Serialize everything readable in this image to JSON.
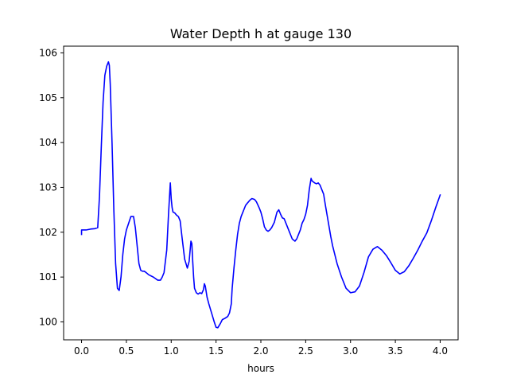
{
  "chart_data": {
    "type": "line",
    "title": "Water Depth h at gauge 130",
    "xlabel": "hours",
    "ylabel": "",
    "xlim": [
      -0.2,
      4.2
    ],
    "ylim": [
      99.6,
      106.15
    ],
    "xticks": [
      0.0,
      0.5,
      1.0,
      1.5,
      2.0,
      2.5,
      3.0,
      3.5,
      4.0
    ],
    "xtick_labels": [
      "0.0",
      "0.5",
      "1.0",
      "1.5",
      "2.0",
      "2.5",
      "3.0",
      "3.5",
      "4.0"
    ],
    "yticks": [
      100,
      101,
      102,
      103,
      104,
      105,
      106
    ],
    "ytick_labels": [
      "100",
      "101",
      "102",
      "103",
      "104",
      "105",
      "106"
    ],
    "grid": false,
    "series": [
      {
        "color": "#0000ff",
        "x": [
          0.0,
          0.0,
          0.05,
          0.1,
          0.15,
          0.18,
          0.2,
          0.22,
          0.24,
          0.26,
          0.28,
          0.3,
          0.31,
          0.32,
          0.34,
          0.36,
          0.38,
          0.4,
          0.42,
          0.44,
          0.46,
          0.48,
          0.5,
          0.55,
          0.58,
          0.6,
          0.62,
          0.64,
          0.66,
          0.68,
          0.7,
          0.72,
          0.75,
          0.8,
          0.85,
          0.88,
          0.9,
          0.92,
          0.95,
          0.97,
          0.99,
          1.0,
          1.01,
          1.02,
          1.04,
          1.06,
          1.08,
          1.1,
          1.12,
          1.15,
          1.18,
          1.2,
          1.22,
          1.23,
          1.24,
          1.25,
          1.26,
          1.28,
          1.3,
          1.32,
          1.34,
          1.36,
          1.37,
          1.38,
          1.4,
          1.42,
          1.45,
          1.48,
          1.5,
          1.52,
          1.55,
          1.57,
          1.6,
          1.63,
          1.65,
          1.67,
          1.68,
          1.7,
          1.72,
          1.74,
          1.76,
          1.78,
          1.8,
          1.83,
          1.85,
          1.88,
          1.9,
          1.93,
          1.95,
          1.98,
          2.0,
          2.02,
          2.04,
          2.06,
          2.08,
          2.1,
          2.12,
          2.15,
          2.18,
          2.2,
          2.22,
          2.24,
          2.26,
          2.28,
          2.3,
          2.32,
          2.35,
          2.38,
          2.4,
          2.42,
          2.44,
          2.46,
          2.48,
          2.5,
          2.52,
          2.54,
          2.56,
          2.57,
          2.58,
          2.6,
          2.62,
          2.64,
          2.66,
          2.68,
          2.7,
          2.72,
          2.75,
          2.78,
          2.8,
          2.85,
          2.9,
          2.95,
          3.0,
          3.05,
          3.1,
          3.15,
          3.2,
          3.25,
          3.3,
          3.35,
          3.4,
          3.45,
          3.5,
          3.55,
          3.6,
          3.65,
          3.7,
          3.75,
          3.8,
          3.85,
          3.9,
          3.95,
          4.0
        ],
        "y": [
          101.95,
          102.05,
          102.05,
          102.07,
          102.08,
          102.1,
          102.8,
          103.9,
          104.9,
          105.5,
          105.7,
          105.8,
          105.72,
          105.3,
          104.0,
          102.5,
          101.3,
          100.75,
          100.7,
          101.0,
          101.5,
          101.85,
          102.05,
          102.35,
          102.35,
          102.1,
          101.7,
          101.3,
          101.15,
          101.13,
          101.13,
          101.1,
          101.05,
          101.0,
          100.93,
          100.93,
          101.0,
          101.1,
          101.6,
          102.4,
          103.1,
          102.75,
          102.55,
          102.45,
          102.43,
          102.38,
          102.35,
          102.25,
          101.9,
          101.4,
          101.2,
          101.35,
          101.8,
          101.75,
          101.35,
          101.0,
          100.75,
          100.65,
          100.62,
          100.65,
          100.63,
          100.72,
          100.85,
          100.8,
          100.55,
          100.4,
          100.2,
          100.0,
          99.88,
          99.87,
          99.97,
          100.05,
          100.08,
          100.12,
          100.2,
          100.4,
          100.75,
          101.2,
          101.6,
          101.95,
          102.2,
          102.35,
          102.45,
          102.6,
          102.65,
          102.72,
          102.75,
          102.73,
          102.68,
          102.55,
          102.45,
          102.3,
          102.12,
          102.05,
          102.02,
          102.05,
          102.1,
          102.22,
          102.45,
          102.5,
          102.4,
          102.32,
          102.3,
          102.2,
          102.1,
          102.0,
          101.85,
          101.8,
          101.85,
          101.95,
          102.05,
          102.2,
          102.28,
          102.4,
          102.6,
          102.95,
          103.2,
          103.15,
          103.13,
          103.1,
          103.08,
          103.1,
          103.05,
          102.95,
          102.85,
          102.6,
          102.25,
          101.9,
          101.7,
          101.3,
          101.0,
          100.75,
          100.65,
          100.67,
          100.8,
          101.1,
          101.45,
          101.62,
          101.68,
          101.6,
          101.48,
          101.32,
          101.15,
          101.07,
          101.12,
          101.25,
          101.42,
          101.6,
          101.8,
          101.98,
          102.25,
          102.55,
          102.83
        ]
      }
    ]
  }
}
